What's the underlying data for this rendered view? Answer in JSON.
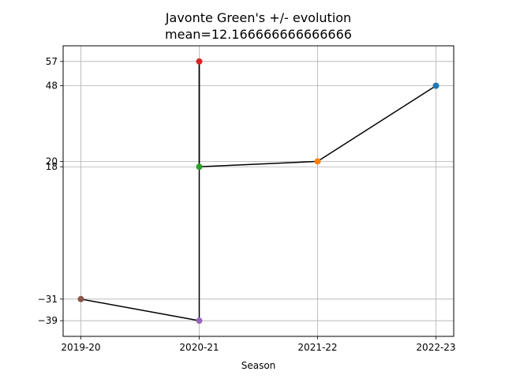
{
  "chart_data": {
    "type": "line",
    "title_line1": "Javonte Green's +/- evolution",
    "title_line2": "mean=12.166666666666666",
    "xlabel": "Season",
    "ylabel": "",
    "categories": [
      "2019-20",
      "2020-21",
      "2021-22",
      "2022-23"
    ],
    "yticks": [
      57,
      48,
      20,
      18,
      -31,
      -39
    ],
    "ylim": [
      -44.8,
      62.8
    ],
    "grid": true,
    "points": [
      {
        "season": "2022-23",
        "value": 48,
        "color": "#1f77b4"
      },
      {
        "season": "2021-22",
        "value": 20,
        "color": "#ff7f0e"
      },
      {
        "season": "2020-21",
        "value": 18,
        "color": "#2ca02c"
      },
      {
        "season": "2020-21",
        "value": 57,
        "color": "#d62728"
      },
      {
        "season": "2020-21",
        "value": -39,
        "color": "#9467bd"
      },
      {
        "season": "2019-20",
        "value": -31,
        "color": "#8c564b"
      }
    ],
    "line_color": "#000000"
  }
}
